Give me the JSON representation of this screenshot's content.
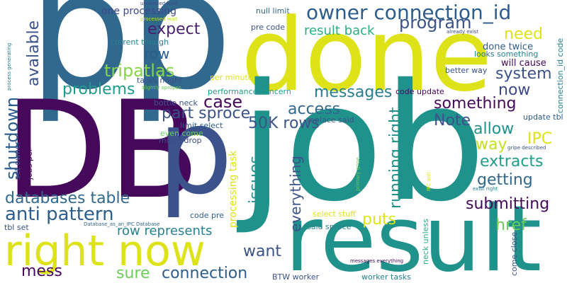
{
  "words": [
    {
      "text": "p",
      "color": "#31688e"
    },
    {
      "text": "p",
      "color": "#31688e"
    },
    {
      "text": "done",
      "color": "#dde318"
    },
    {
      "text": "DB",
      "color": "#46085b"
    },
    {
      "text": "job",
      "color": "#20928c"
    },
    {
      "text": "p",
      "color": "#3b528b"
    },
    {
      "text": "result",
      "color": "#20928c"
    },
    {
      "text": "right now",
      "color": "#dde318"
    },
    {
      "text": "owner connection_id",
      "color": "#2c5d8d"
    },
    {
      "text": "program",
      "color": "#3a5389"
    },
    {
      "text": "expect",
      "color": "#481f70"
    },
    {
      "text": "need",
      "color": "#dde318"
    },
    {
      "text": "result back",
      "color": "#2ab07f"
    },
    {
      "text": "row",
      "color": "#2c5d8d"
    },
    {
      "text": "tripatlas",
      "color": "#86d549"
    },
    {
      "text": "system",
      "color": "#3b528b"
    },
    {
      "text": "problems",
      "color": "#1e9b8a"
    },
    {
      "text": "messages",
      "color": "#277f8e"
    },
    {
      "text": "now",
      "color": "#3e4989"
    },
    {
      "text": "case",
      "color": "#46085b"
    },
    {
      "text": "part sproce",
      "color": "#3a5389"
    },
    {
      "text": "access",
      "color": "#31688e"
    },
    {
      "text": "something",
      "color": "#46085b"
    },
    {
      "text": "Note",
      "color": "#3b528b"
    },
    {
      "text": "50K rows",
      "color": "#3a5389"
    },
    {
      "text": "allow",
      "color": "#20928c"
    },
    {
      "text": "IPC",
      "color": "#dde318"
    },
    {
      "text": "way",
      "color": "#c5e021"
    },
    {
      "text": "extracts",
      "color": "#1f9e89"
    },
    {
      "text": "getting",
      "color": "#31688e"
    },
    {
      "text": "submitting",
      "color": "#46085b"
    },
    {
      "text": "databases table",
      "color": "#31688e"
    },
    {
      "text": "anti pattern",
      "color": "#2c5d8d"
    },
    {
      "text": "href",
      "color": "#6ccd5a"
    },
    {
      "text": "puts",
      "color": "#dde318"
    },
    {
      "text": "row represents",
      "color": "#26828e"
    },
    {
      "text": "want",
      "color": "#3a5389"
    },
    {
      "text": "mess",
      "color": "#46085b"
    },
    {
      "text": "sure",
      "color": "#6ccd5a"
    },
    {
      "text": "connection",
      "color": "#2c5d8d"
    },
    {
      "text": "one processing",
      "color": "#3e4989"
    },
    {
      "text": "null limit",
      "color": "#31688e"
    },
    {
      "text": "pre code",
      "color": "#3b528b"
    },
    {
      "text": "current though",
      "color": "#26828e"
    },
    {
      "text": "done twice",
      "color": "#2c5d8d"
    },
    {
      "text": "looks something",
      "color": "#277f8e"
    },
    {
      "text": "will cause",
      "color": "#46085b"
    },
    {
      "text": "better way",
      "color": "#3a5389"
    },
    {
      "text": "per minute",
      "color": "#dde318"
    },
    {
      "text": "tasks might",
      "color": "#3b528b"
    },
    {
      "text": "performance concern",
      "color": "#1f9e89"
    },
    {
      "text": "code update",
      "color": "#46085b"
    },
    {
      "text": "bottle neck",
      "color": "#3b528b"
    },
    {
      "text": "limit select",
      "color": "#2c5d8d"
    },
    {
      "text": "even come",
      "color": "#6ccd5a"
    },
    {
      "text": "might drop",
      "color": "#3e4989"
    },
    {
      "text": "replace said",
      "color": "#3a5389"
    },
    {
      "text": "update tbl",
      "color": "#2c5d8d"
    },
    {
      "text": "code pre",
      "color": "#2c5d8d"
    },
    {
      "text": "select stuff",
      "color": "#dde318"
    },
    {
      "text": "said sproce",
      "color": "#26828e"
    },
    {
      "text": "tbl set",
      "color": "#3b528b"
    },
    {
      "text": "BTW worker",
      "color": "#3b528b"
    },
    {
      "text": "worker tasks",
      "color": "#26828e"
    },
    {
      "text": "unneeded load",
      "color": "#3e4989"
    },
    {
      "text": "processed wait",
      "color": "#c5e021"
    },
    {
      "text": "already exist",
      "color": "#3e4989"
    },
    {
      "text": "slightly apropos",
      "color": "#6ccd5a"
    },
    {
      "text": "exist right",
      "color": "#26828e"
    },
    {
      "text": "gripe described",
      "color": "#3a5389"
    },
    {
      "text": "Database_as_an_IPC Database",
      "color": "#31688e"
    },
    {
      "text": "messages everything",
      "color": "#46085b"
    },
    {
      "text": "avalable",
      "color": "#3b528b"
    },
    {
      "text": "shutdown",
      "color": "#2c5d8d"
    },
    {
      "text": "issues",
      "color": "#20928c"
    },
    {
      "text": "everything",
      "color": "#3b528b"
    },
    {
      "text": "running right",
      "color": "#20928c"
    },
    {
      "text": "processing task",
      "color": "#dde318"
    },
    {
      "text": "set owner",
      "color": "#3b528b"
    },
    {
      "text": "jobs per",
      "color": "#46085b"
    },
    {
      "text": "process generating",
      "color": "#26828e"
    },
    {
      "text": "connection_id code",
      "color": "#277f8e"
    },
    {
      "text": "come close",
      "color": "#3a5389"
    },
    {
      "text": "neck unless",
      "color": "#2ab07f"
    },
    {
      "text": "IPC anti",
      "color": "#dde318"
    },
    {
      "text": "primary gripe",
      "color": "#6ccd5a"
    }
  ]
}
